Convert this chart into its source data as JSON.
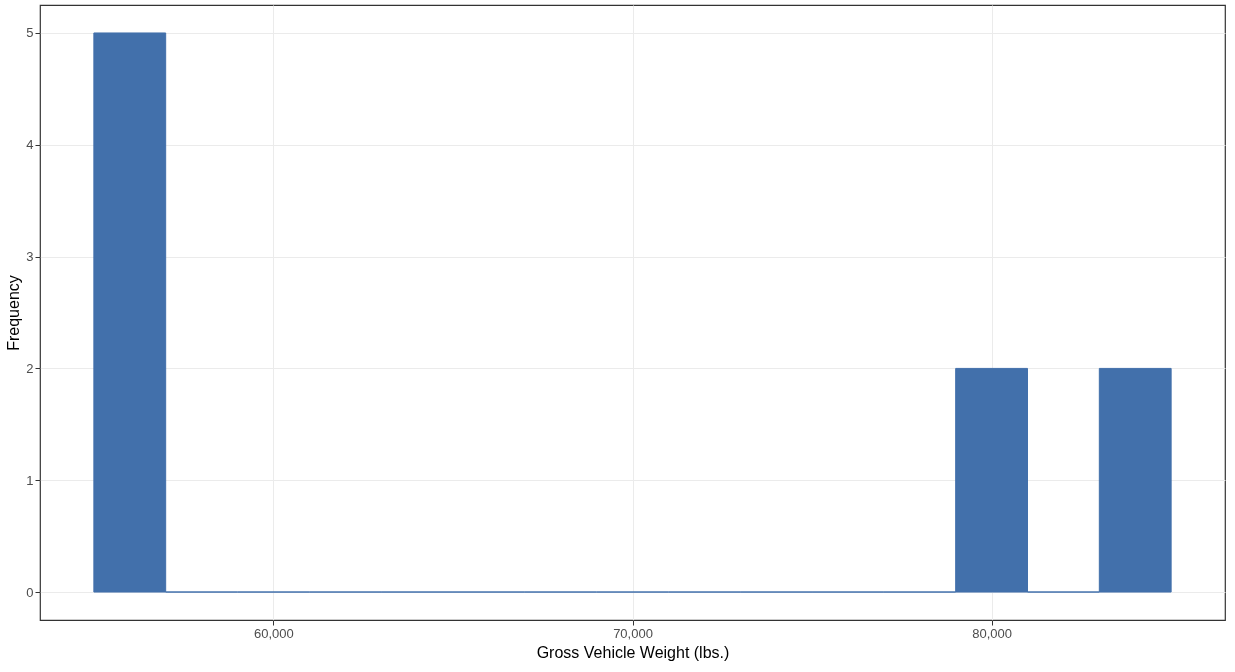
{
  "chart_data": {
    "type": "histogram",
    "xlabel": "Gross Vehicle Weight (lbs.)",
    "ylabel": "Frequency",
    "bins": [
      55000,
      57000,
      59000,
      61000,
      63000,
      65000,
      67000,
      69000,
      71000,
      73000,
      75000,
      77000,
      79000,
      81000,
      83000,
      85000
    ],
    "values": [
      5,
      0,
      0,
      0,
      0,
      0,
      0,
      0,
      0,
      0,
      0,
      0,
      2,
      0,
      2
    ],
    "color": "#4270ab",
    "xlim": [
      53500,
      86500
    ],
    "xticks": [
      {
        "value": 60000,
        "label": "60,000"
      },
      {
        "value": 70000,
        "label": "70,000"
      },
      {
        "value": 80000,
        "label": "80,000"
      }
    ],
    "ylim": [
      -0.25,
      5.25
    ],
    "yticks": [
      0,
      1,
      2,
      3,
      4,
      5
    ],
    "grid": true
  }
}
